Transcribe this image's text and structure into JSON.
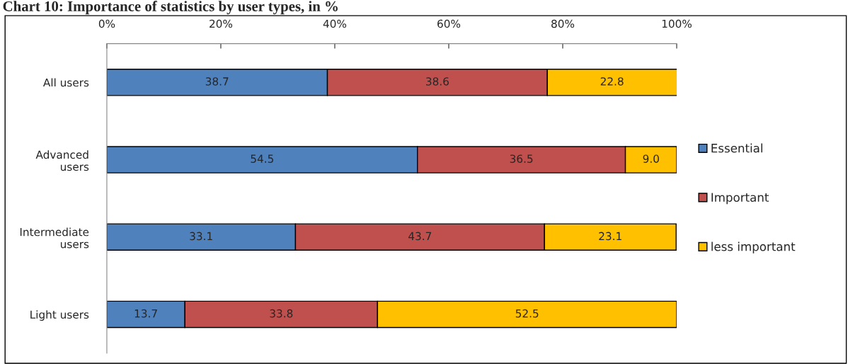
{
  "chart_data": {
    "type": "bar",
    "orientation": "horizontal",
    "stacked": true,
    "title": "Chart 10: Importance of statistics by user types, in %",
    "categories": [
      "All users",
      "Advanced\nusers",
      "Intermediate\nusers",
      "Light users"
    ],
    "series": [
      {
        "name": "Essential",
        "color": "#4f81bd",
        "values": [
          38.7,
          54.5,
          33.1,
          13.7
        ],
        "value_labels": [
          "38.7",
          "54.5",
          "33.1",
          "13.7"
        ]
      },
      {
        "name": "Important",
        "color": "#c0504d",
        "values": [
          38.6,
          36.5,
          43.7,
          33.8
        ],
        "value_labels": [
          "38.6",
          "36.5",
          "43.7",
          "33.8"
        ]
      },
      {
        "name": "less important",
        "color": "#ffc000",
        "values": [
          22.8,
          9.0,
          23.1,
          52.5
        ],
        "value_labels": [
          "22.8",
          "9.0",
          "23.1",
          "52.5"
        ]
      }
    ],
    "xlim": [
      0,
      100
    ],
    "xticks": [
      {
        "value": 0,
        "label": "0%"
      },
      {
        "value": 20,
        "label": "20%"
      },
      {
        "value": 40,
        "label": "40%"
      },
      {
        "value": 60,
        "label": "60%"
      },
      {
        "value": 80,
        "label": "80%"
      },
      {
        "value": 100,
        "label": "100%"
      }
    ],
    "grid": false,
    "legend": "right"
  }
}
